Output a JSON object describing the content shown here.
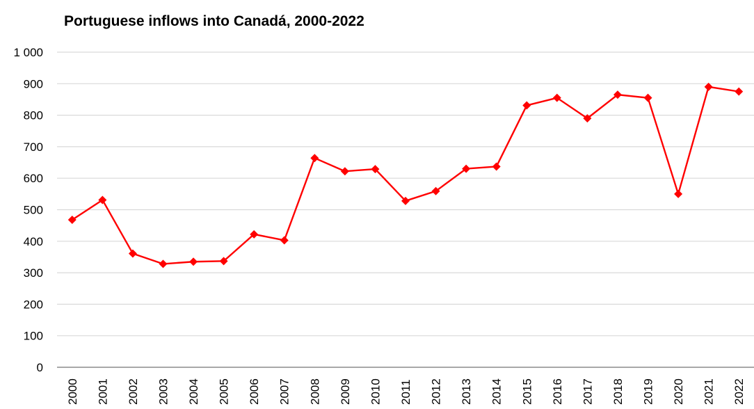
{
  "chart_data": {
    "type": "line",
    "title": "Portuguese inflows into Canadá, 2000-2022",
    "xlabel": "",
    "ylabel": "",
    "ylim": [
      0,
      1000
    ],
    "yticks": [
      0,
      100,
      200,
      300,
      400,
      500,
      600,
      700,
      800,
      900,
      1000
    ],
    "ytick_labels": [
      "0",
      "100",
      "200",
      "300",
      "400",
      "500",
      "600",
      "700",
      "800",
      "900",
      "1 000"
    ],
    "categories": [
      "2000",
      "2001",
      "2002",
      "2003",
      "2004",
      "2005",
      "2006",
      "2007",
      "2008",
      "2009",
      "2010",
      "2011",
      "2012",
      "2013",
      "2014",
      "2015",
      "2016",
      "2017",
      "2018",
      "2019",
      "2020",
      "2021",
      "2022"
    ],
    "series": [
      {
        "values": [
          468,
          531,
          361,
          328,
          335,
          337,
          422,
          403,
          664,
          622,
          629,
          528,
          559,
          630,
          637,
          831,
          855,
          790,
          865,
          855,
          550,
          890,
          875
        ],
        "color": "#ff0000",
        "marker": "diamond"
      }
    ],
    "grid": true,
    "legend": "none"
  }
}
